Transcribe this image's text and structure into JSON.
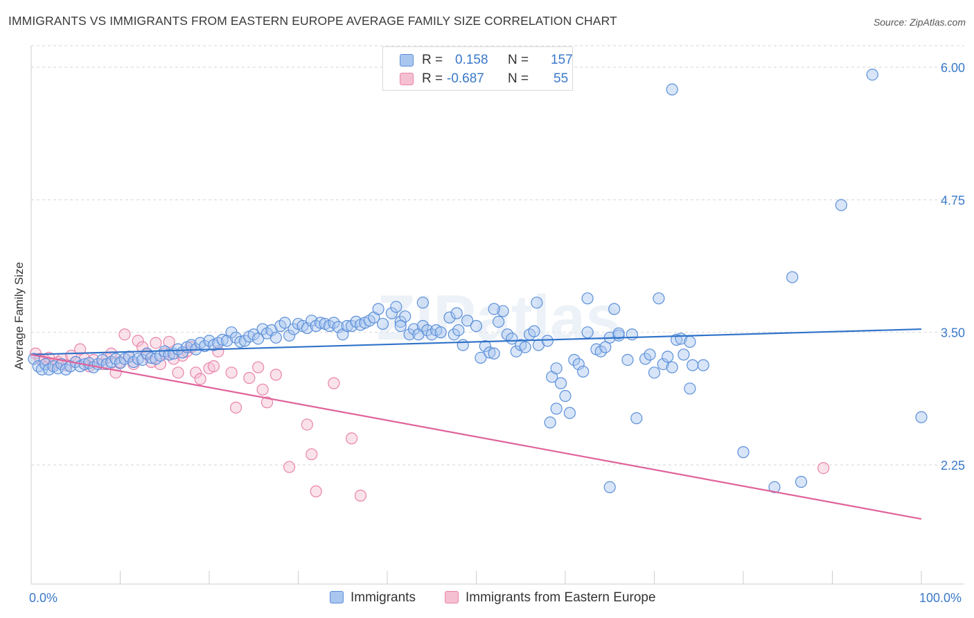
{
  "title": "IMMIGRANTS VS IMMIGRANTS FROM EASTERN EUROPE AVERAGE FAMILY SIZE CORRELATION CHART",
  "source": "Source: ZipAtlas.com",
  "watermark": "ZIPatlas",
  "legend": {
    "series1": {
      "r_label": "R =",
      "r_value": "0.158",
      "n_label": "N =",
      "n_value": "157"
    },
    "series2": {
      "r_label": "R =",
      "r_value": "-0.687",
      "n_label": "N =",
      "n_value": "55"
    }
  },
  "bottom_legend": {
    "series1": "Immigrants",
    "series2": "Immigrants from Eastern Europe"
  },
  "axis": {
    "ylabel": "Average Family Size",
    "x_min_label": "0.0%",
    "x_max_label": "100.0%"
  },
  "colors": {
    "blue": "#5b8fd9",
    "blue_fill": "#a9c6ef",
    "pink": "#e983a8",
    "pink_fill": "#f5bfd2",
    "blue_line": "#2f72c9",
    "pink_line": "#e0629a",
    "tick_text": "#3a78c9"
  },
  "chart_data": {
    "type": "scatter",
    "xlabel": "",
    "ylabel": "Average Family Size",
    "xlim": [
      0,
      100
    ],
    "ylim": [
      1.0,
      6.2
    ],
    "yticks": [
      {
        "value": 6.0,
        "label": "6.00"
      },
      {
        "value": 4.75,
        "label": "4.75"
      },
      {
        "value": 3.5,
        "label": "3.50"
      },
      {
        "value": 2.25,
        "label": "2.25"
      }
    ],
    "grid": "horizontal dashed",
    "legend_position": "top-center",
    "series": [
      {
        "name": "Immigrants",
        "color": "blue",
        "trend": {
          "x": [
            0,
            100
          ],
          "y": [
            3.29,
            3.53
          ]
        },
        "points": [
          [
            0.3,
            3.25
          ],
          [
            0.8,
            3.18
          ],
          [
            1.2,
            3.15
          ],
          [
            1.6,
            3.2
          ],
          [
            2.0,
            3.15
          ],
          [
            2.5,
            3.18
          ],
          [
            3.0,
            3.16
          ],
          [
            3.4,
            3.2
          ],
          [
            3.9,
            3.15
          ],
          [
            4.4,
            3.18
          ],
          [
            5.0,
            3.22
          ],
          [
            5.5,
            3.18
          ],
          [
            6.0,
            3.2
          ],
          [
            6.5,
            3.21
          ],
          [
            7.0,
            3.17
          ],
          [
            7.5,
            3.2
          ],
          [
            8.0,
            3.24
          ],
          [
            8.5,
            3.2
          ],
          [
            9.0,
            3.22
          ],
          [
            9.5,
            3.25
          ],
          [
            10.0,
            3.21
          ],
          [
            10.5,
            3.25
          ],
          [
            11.0,
            3.27
          ],
          [
            11.5,
            3.22
          ],
          [
            12.0,
            3.25
          ],
          [
            12.5,
            3.24
          ],
          [
            13.0,
            3.3
          ],
          [
            13.5,
            3.26
          ],
          [
            14.0,
            3.25
          ],
          [
            14.5,
            3.28
          ],
          [
            15.0,
            3.32
          ],
          [
            15.5,
            3.29
          ],
          [
            16.0,
            3.3
          ],
          [
            16.5,
            3.34
          ],
          [
            17.0,
            3.31
          ],
          [
            17.5,
            3.36
          ],
          [
            18.0,
            3.38
          ],
          [
            18.5,
            3.34
          ],
          [
            19.0,
            3.4
          ],
          [
            19.5,
            3.37
          ],
          [
            20.0,
            3.42
          ],
          [
            20.5,
            3.38
          ],
          [
            21.0,
            3.4
          ],
          [
            21.5,
            3.43
          ],
          [
            22.0,
            3.42
          ],
          [
            22.5,
            3.5
          ],
          [
            23.0,
            3.45
          ],
          [
            23.5,
            3.41
          ],
          [
            24.0,
            3.42
          ],
          [
            24.5,
            3.46
          ],
          [
            25.0,
            3.48
          ],
          [
            25.5,
            3.44
          ],
          [
            26.0,
            3.53
          ],
          [
            26.5,
            3.49
          ],
          [
            27.0,
            3.52
          ],
          [
            27.5,
            3.45
          ],
          [
            28.0,
            3.56
          ],
          [
            28.5,
            3.59
          ],
          [
            29.0,
            3.47
          ],
          [
            29.5,
            3.53
          ],
          [
            30.0,
            3.58
          ],
          [
            30.5,
            3.56
          ],
          [
            31.0,
            3.54
          ],
          [
            31.5,
            3.61
          ],
          [
            32.0,
            3.56
          ],
          [
            32.5,
            3.59
          ],
          [
            33.0,
            3.58
          ],
          [
            33.5,
            3.56
          ],
          [
            34.0,
            3.59
          ],
          [
            34.5,
            3.55
          ],
          [
            35.0,
            3.48
          ],
          [
            35.5,
            3.56
          ],
          [
            36.0,
            3.56
          ],
          [
            36.5,
            3.6
          ],
          [
            37.0,
            3.57
          ],
          [
            37.5,
            3.59
          ],
          [
            38.0,
            3.61
          ],
          [
            38.5,
            3.64
          ],
          [
            39.0,
            3.72
          ],
          [
            39.5,
            3.58
          ],
          [
            40.5,
            3.68
          ],
          [
            41.0,
            3.74
          ],
          [
            41.5,
            3.6
          ],
          [
            42.0,
            3.65
          ],
          [
            42.5,
            3.48
          ],
          [
            43.0,
            3.53
          ],
          [
            43.5,
            3.48
          ],
          [
            44.0,
            3.56
          ],
          [
            44.5,
            3.52
          ],
          [
            45.0,
            3.48
          ],
          [
            45.5,
            3.52
          ],
          [
            46.0,
            3.5
          ],
          [
            47.0,
            3.64
          ],
          [
            47.5,
            3.48
          ],
          [
            48.0,
            3.52
          ],
          [
            48.5,
            3.38
          ],
          [
            49.0,
            3.61
          ],
          [
            50.0,
            3.56
          ],
          [
            50.5,
            3.26
          ],
          [
            51.0,
            3.37
          ],
          [
            51.5,
            3.31
          ],
          [
            52.0,
            3.3
          ],
          [
            52.5,
            3.6
          ],
          [
            53.0,
            3.7
          ],
          [
            53.5,
            3.48
          ],
          [
            54.0,
            3.44
          ],
          [
            54.5,
            3.32
          ],
          [
            55.0,
            3.38
          ],
          [
            55.5,
            3.36
          ],
          [
            56.0,
            3.48
          ],
          [
            56.5,
            3.51
          ],
          [
            56.8,
            3.78
          ],
          [
            57.0,
            3.38
          ],
          [
            58.0,
            3.42
          ],
          [
            58.5,
            3.08
          ],
          [
            59.0,
            3.16
          ],
          [
            59.5,
            3.02
          ],
          [
            60.0,
            2.9
          ],
          [
            60.5,
            2.74
          ],
          [
            61.0,
            3.24
          ],
          [
            61.5,
            3.2
          ],
          [
            62.0,
            3.13
          ],
          [
            62.5,
            3.5
          ],
          [
            63.5,
            3.34
          ],
          [
            64.0,
            3.32
          ],
          [
            64.5,
            3.36
          ],
          [
            65.0,
            3.45
          ],
          [
            65.5,
            3.72
          ],
          [
            66.0,
            3.47
          ],
          [
            67.0,
            3.24
          ],
          [
            67.5,
            3.48
          ],
          [
            68.0,
            2.69
          ],
          [
            69.0,
            3.25
          ],
          [
            69.5,
            3.29
          ],
          [
            70.0,
            3.12
          ],
          [
            70.5,
            3.82
          ],
          [
            71.0,
            3.2
          ],
          [
            71.5,
            3.27
          ],
          [
            72.0,
            3.17
          ],
          [
            72.5,
            3.43
          ],
          [
            73.0,
            3.44
          ],
          [
            74.0,
            2.97
          ],
          [
            75.5,
            3.19
          ],
          [
            65.0,
            2.04
          ],
          [
            72.0,
            5.79
          ],
          [
            85.5,
            4.02
          ],
          [
            86.5,
            2.09
          ],
          [
            83.5,
            2.04
          ],
          [
            80.0,
            2.37
          ],
          [
            91.0,
            4.7
          ],
          [
            94.5,
            5.93
          ],
          [
            100.0,
            2.7
          ],
          [
            62.5,
            3.82
          ],
          [
            52.0,
            3.72
          ],
          [
            47.8,
            3.68
          ],
          [
            44.0,
            3.78
          ],
          [
            41.5,
            3.56
          ],
          [
            59.0,
            2.78
          ],
          [
            58.3,
            2.65
          ],
          [
            66.0,
            3.49
          ],
          [
            74.3,
            3.19
          ],
          [
            74.0,
            3.41
          ],
          [
            73.3,
            3.29
          ]
        ]
      },
      {
        "name": "Immigrants from Eastern Europe",
        "color": "pink",
        "trend": {
          "x": [
            0,
            100
          ],
          "y": [
            3.29,
            1.74
          ]
        },
        "points": [
          [
            0.5,
            3.3
          ],
          [
            1.0,
            3.25
          ],
          [
            1.5,
            3.24
          ],
          [
            2.0,
            3.26
          ],
          [
            2.5,
            3.2
          ],
          [
            3.0,
            3.22
          ],
          [
            3.5,
            3.25
          ],
          [
            4.0,
            3.19
          ],
          [
            4.5,
            3.28
          ],
          [
            5.0,
            3.22
          ],
          [
            5.5,
            3.34
          ],
          [
            6.0,
            3.25
          ],
          [
            6.5,
            3.18
          ],
          [
            7.0,
            3.24
          ],
          [
            8.0,
            3.2
          ],
          [
            8.5,
            3.26
          ],
          [
            9.0,
            3.3
          ],
          [
            9.5,
            3.12
          ],
          [
            10.0,
            3.22
          ],
          [
            10.5,
            3.48
          ],
          [
            11.0,
            3.27
          ],
          [
            11.5,
            3.2
          ],
          [
            12.0,
            3.42
          ],
          [
            12.5,
            3.36
          ],
          [
            13.0,
            3.29
          ],
          [
            13.5,
            3.22
          ],
          [
            14.0,
            3.4
          ],
          [
            14.5,
            3.2
          ],
          [
            15.0,
            3.3
          ],
          [
            15.5,
            3.41
          ],
          [
            16.0,
            3.25
          ],
          [
            16.5,
            3.12
          ],
          [
            17.0,
            3.28
          ],
          [
            17.5,
            3.32
          ],
          [
            18.0,
            3.36
          ],
          [
            18.5,
            3.12
          ],
          [
            19.0,
            3.06
          ],
          [
            20.0,
            3.16
          ],
          [
            20.5,
            3.18
          ],
          [
            21.0,
            3.32
          ],
          [
            22.5,
            3.12
          ],
          [
            23.0,
            2.79
          ],
          [
            24.5,
            3.07
          ],
          [
            25.5,
            3.17
          ],
          [
            26.0,
            2.96
          ],
          [
            26.5,
            2.84
          ],
          [
            27.5,
            3.1
          ],
          [
            29.0,
            2.23
          ],
          [
            31.0,
            2.63
          ],
          [
            31.5,
            2.35
          ],
          [
            32.0,
            2.0
          ],
          [
            34.0,
            3.02
          ],
          [
            36.0,
            2.5
          ],
          [
            37.0,
            1.96
          ],
          [
            89.0,
            2.22
          ]
        ]
      }
    ]
  }
}
